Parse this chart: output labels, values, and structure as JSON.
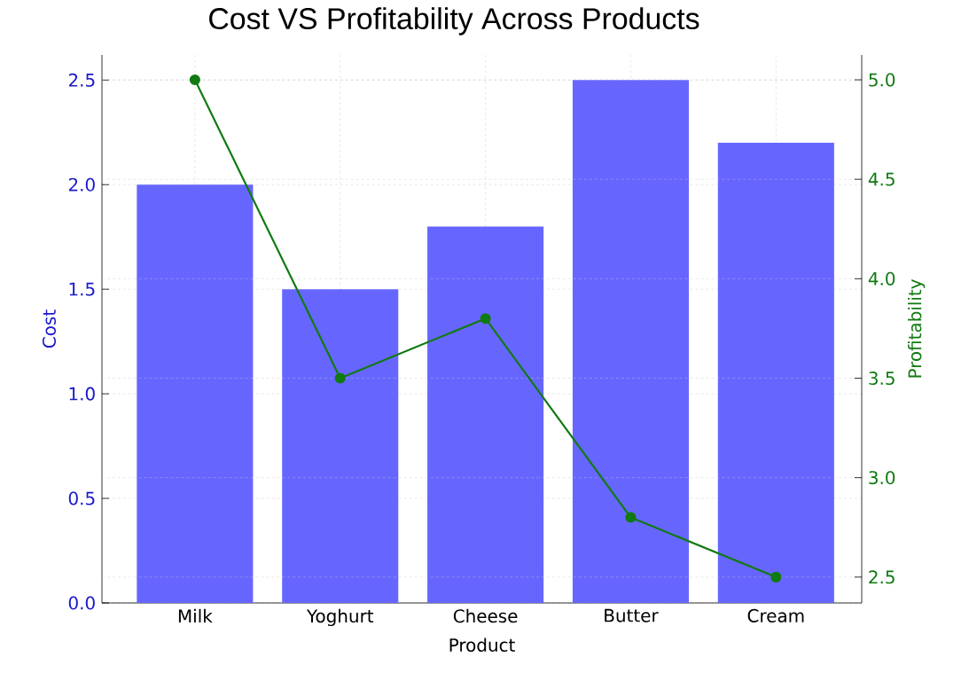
{
  "chart_data": {
    "type": "bar",
    "title": "Cost VS Profitability Across Products",
    "xlabel": "Product",
    "ylabel": "Cost",
    "y2label": "Profitability",
    "categories": [
      "Milk",
      "Yoghurt",
      "Cheese",
      "Butter",
      "Cream"
    ],
    "series": [
      {
        "color": "#6666ff",
        "values": [
          2.0,
          1.5,
          1.8,
          2.5,
          2.2
        ]
      },
      {
        "type": "line",
        "axis": "y2",
        "color": "#117a11",
        "values": [
          5.0,
          3.5,
          3.8,
          2.8,
          2.5
        ]
      }
    ],
    "ylim": [
      0,
      2.62
    ],
    "yticks": [
      {
        "value": 0,
        "label": "0.0"
      },
      {
        "value": 0.5,
        "label": "0.5"
      },
      {
        "value": 1,
        "label": "1.0"
      },
      {
        "value": 1.5,
        "label": "1.5"
      },
      {
        "value": 2,
        "label": "2.0"
      },
      {
        "value": 2.5,
        "label": "2.5"
      }
    ],
    "y2lim": [
      2.37,
      5.125
    ],
    "y2ticks": [
      {
        "value": 2.5,
        "label": "2.5"
      },
      {
        "value": 3,
        "label": "3.0"
      },
      {
        "value": 3.5,
        "label": "3.5"
      },
      {
        "value": 4,
        "label": "4.0"
      },
      {
        "value": 4.5,
        "label": "4.5"
      },
      {
        "value": 5,
        "label": "5.0"
      }
    ],
    "grid": true,
    "marker": "circle"
  }
}
